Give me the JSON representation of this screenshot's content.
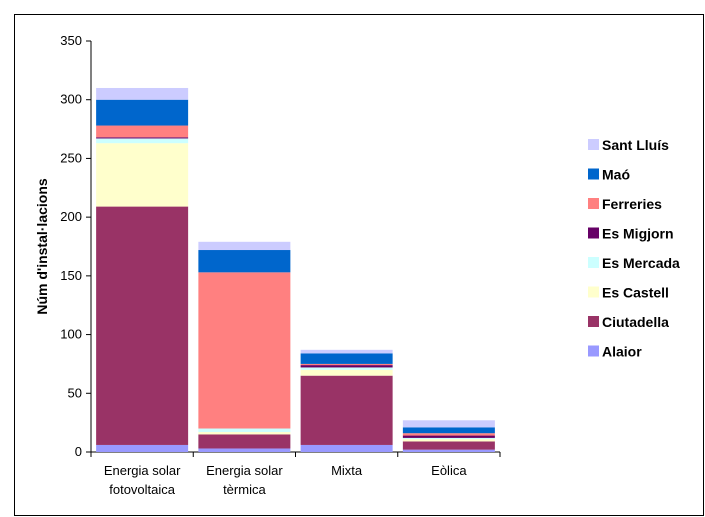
{
  "chart_data": {
    "type": "bar",
    "stacked": true,
    "title": "",
    "xlabel": "",
    "ylabel": "Núm d'instal·lacions",
    "ylim": [
      0,
      350
    ],
    "yticks": [
      0,
      50,
      100,
      150,
      200,
      250,
      300,
      350
    ],
    "grid": false,
    "legend_position": "right",
    "categories": [
      [
        "Energia solar",
        "fotovoltaica"
      ],
      [
        "Energia solar",
        "tèrmica"
      ],
      [
        "Mixta"
      ],
      [
        "Eòlica"
      ]
    ],
    "series": [
      {
        "name": "Alaior",
        "color": "#9999FF",
        "values": [
          6,
          3,
          6,
          2
        ]
      },
      {
        "name": "Ciutadella",
        "color": "#993366",
        "values": [
          203,
          12,
          59,
          7
        ]
      },
      {
        "name": "Es Castell",
        "color": "#FFFFCC",
        "values": [
          54,
          2,
          5,
          2
        ]
      },
      {
        "name": "Es Mercada",
        "color": "#CCFFFF",
        "values": [
          4,
          3,
          2,
          1
        ]
      },
      {
        "name": "Es Migjorn",
        "color": "#660066",
        "values": [
          1,
          0,
          2,
          2
        ]
      },
      {
        "name": "Ferreries",
        "color": "#FF8080",
        "values": [
          10,
          133,
          1,
          2
        ]
      },
      {
        "name": "Maó",
        "color": "#0066CC",
        "values": [
          22,
          19,
          9,
          5
        ]
      },
      {
        "name": "Sant Lluís",
        "color": "#CCCCFF",
        "values": [
          10,
          7,
          3,
          6
        ]
      }
    ]
  }
}
